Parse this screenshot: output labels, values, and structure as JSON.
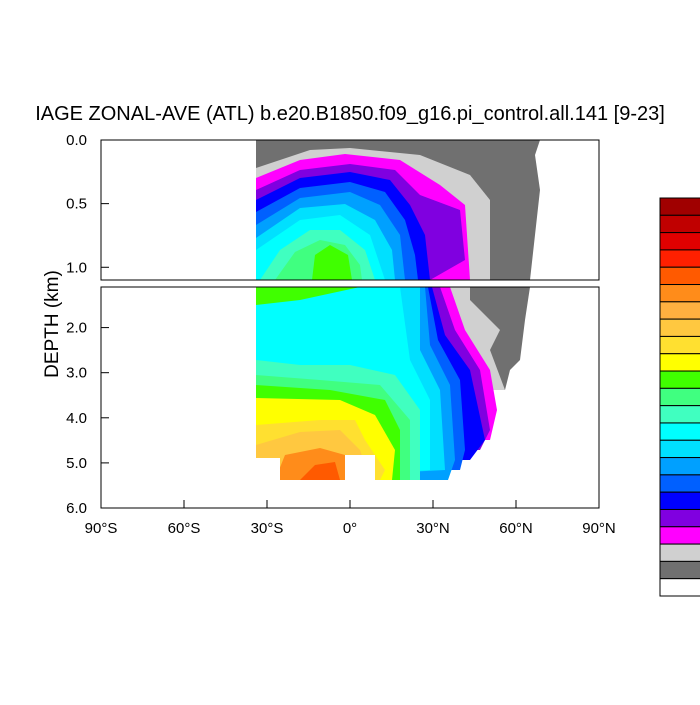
{
  "chart_data": {
    "type": "contour",
    "title": "IAGE ZONAL-AVE (ATL) b.e20.B1850.f09_g16.pi_control.all.141 [9-23]",
    "ylabel": "DEPTH (km)",
    "xlim": [
      -90,
      90
    ],
    "xticks": [
      {
        "value": -90,
        "label": "90°S"
      },
      {
        "value": -60,
        "label": "60°S"
      },
      {
        "value": -30,
        "label": "30°S"
      },
      {
        "value": 0,
        "label": "0°"
      },
      {
        "value": 30,
        "label": "30°N"
      },
      {
        "value": 60,
        "label": "60°N"
      },
      {
        "value": 90,
        "label": "90°N"
      }
    ],
    "panels": [
      {
        "ylim": [
          0,
          1.1
        ],
        "yticks": [
          {
            "value": 0,
            "label": "0.0"
          },
          {
            "value": 0.5,
            "label": "0.5"
          },
          {
            "value": 1,
            "label": "1.0"
          }
        ]
      },
      {
        "ylim": [
          1.1,
          6
        ],
        "yticks": [
          {
            "value": 2,
            "label": "2.0"
          },
          {
            "value": 3,
            "label": "3.0"
          },
          {
            "value": 4,
            "label": "4.0"
          },
          {
            "value": 5,
            "label": "5.0"
          },
          {
            "value": 6,
            "label": "6.0"
          }
        ]
      }
    ],
    "colorbar": [
      "#a00000",
      "#c00000",
      "#e00000",
      "#ff2000",
      "#ff5a00",
      "#ff8c1a",
      "#ffb040",
      "#ffc840",
      "#ffe030",
      "#ffff00",
      "#40ff00",
      "#40ff80",
      "#40ffc0",
      "#00ffff",
      "#00e0ff",
      "#00a0ff",
      "#0060ff",
      "#0000ff",
      "#8000e0",
      "#ff00ff",
      "#d0d0d0",
      "#707070",
      "#ffffff"
    ]
  }
}
